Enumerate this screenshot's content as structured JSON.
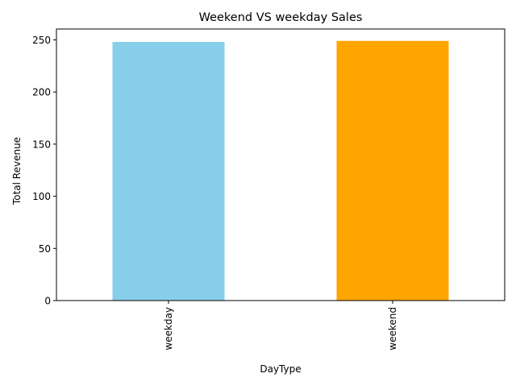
{
  "chart_data": {
    "type": "bar",
    "title": "Weekend VS weekday Sales",
    "xlabel": "DayType",
    "ylabel": "Total Revenue",
    "categories": [
      "weekday",
      "weekend"
    ],
    "values": [
      248,
      249
    ],
    "colors": [
      "#87CEEB",
      "#FFA500"
    ],
    "ylim": [
      0,
      260.4
    ],
    "yticks": [
      0,
      50,
      100,
      150,
      200,
      250
    ],
    "ytick_labels": [
      "0",
      "50",
      "100",
      "150",
      "200",
      "250"
    ],
    "grid": false,
    "legend": "none"
  }
}
